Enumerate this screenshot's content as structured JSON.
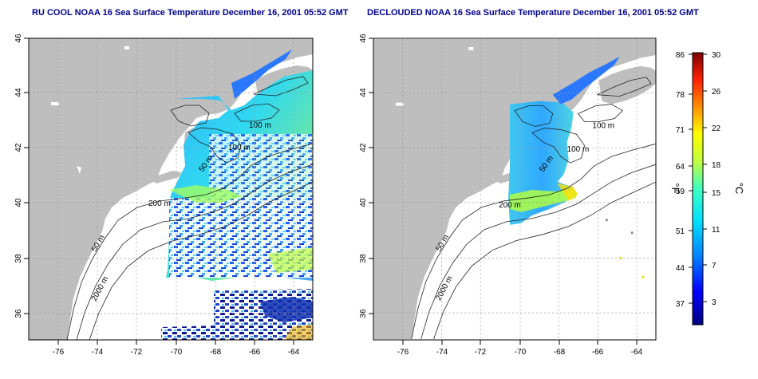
{
  "panels": [
    {
      "title": "RU COOL NOAA 16 Sea Surface Temperature December 16, 2001 05:52 GMT",
      "contour_labels": [
        "100 m",
        "100 m",
        "50 m",
        "200 m",
        "50 m",
        "2000 m"
      ]
    },
    {
      "title": "DECLOUDED NOAA 16 Sea Surface Temperature December 16, 2001 05:52 GMT",
      "contour_labels": [
        "100 m",
        "100 m",
        "50 m",
        "200 m",
        "50 m",
        "2000 m"
      ]
    }
  ],
  "axes": {
    "x_ticks": [
      "-76",
      "-74",
      "-72",
      "-70",
      "-68",
      "-66",
      "-64"
    ],
    "y_ticks": [
      "36",
      "38",
      "40",
      "42",
      "44",
      "46"
    ]
  },
  "colorbar": {
    "fahrenheit_ticks": [
      "86",
      "78",
      "71",
      "64",
      "59",
      "51",
      "44",
      "37"
    ],
    "celsius_ticks": [
      "30",
      "26",
      "22",
      "18",
      "15",
      "11",
      "7",
      "3"
    ],
    "left_unit": "°F",
    "right_unit": "°C"
  },
  "colors": {
    "land": "#bebebe",
    "title": "#00008b",
    "grid": "#999999"
  }
}
